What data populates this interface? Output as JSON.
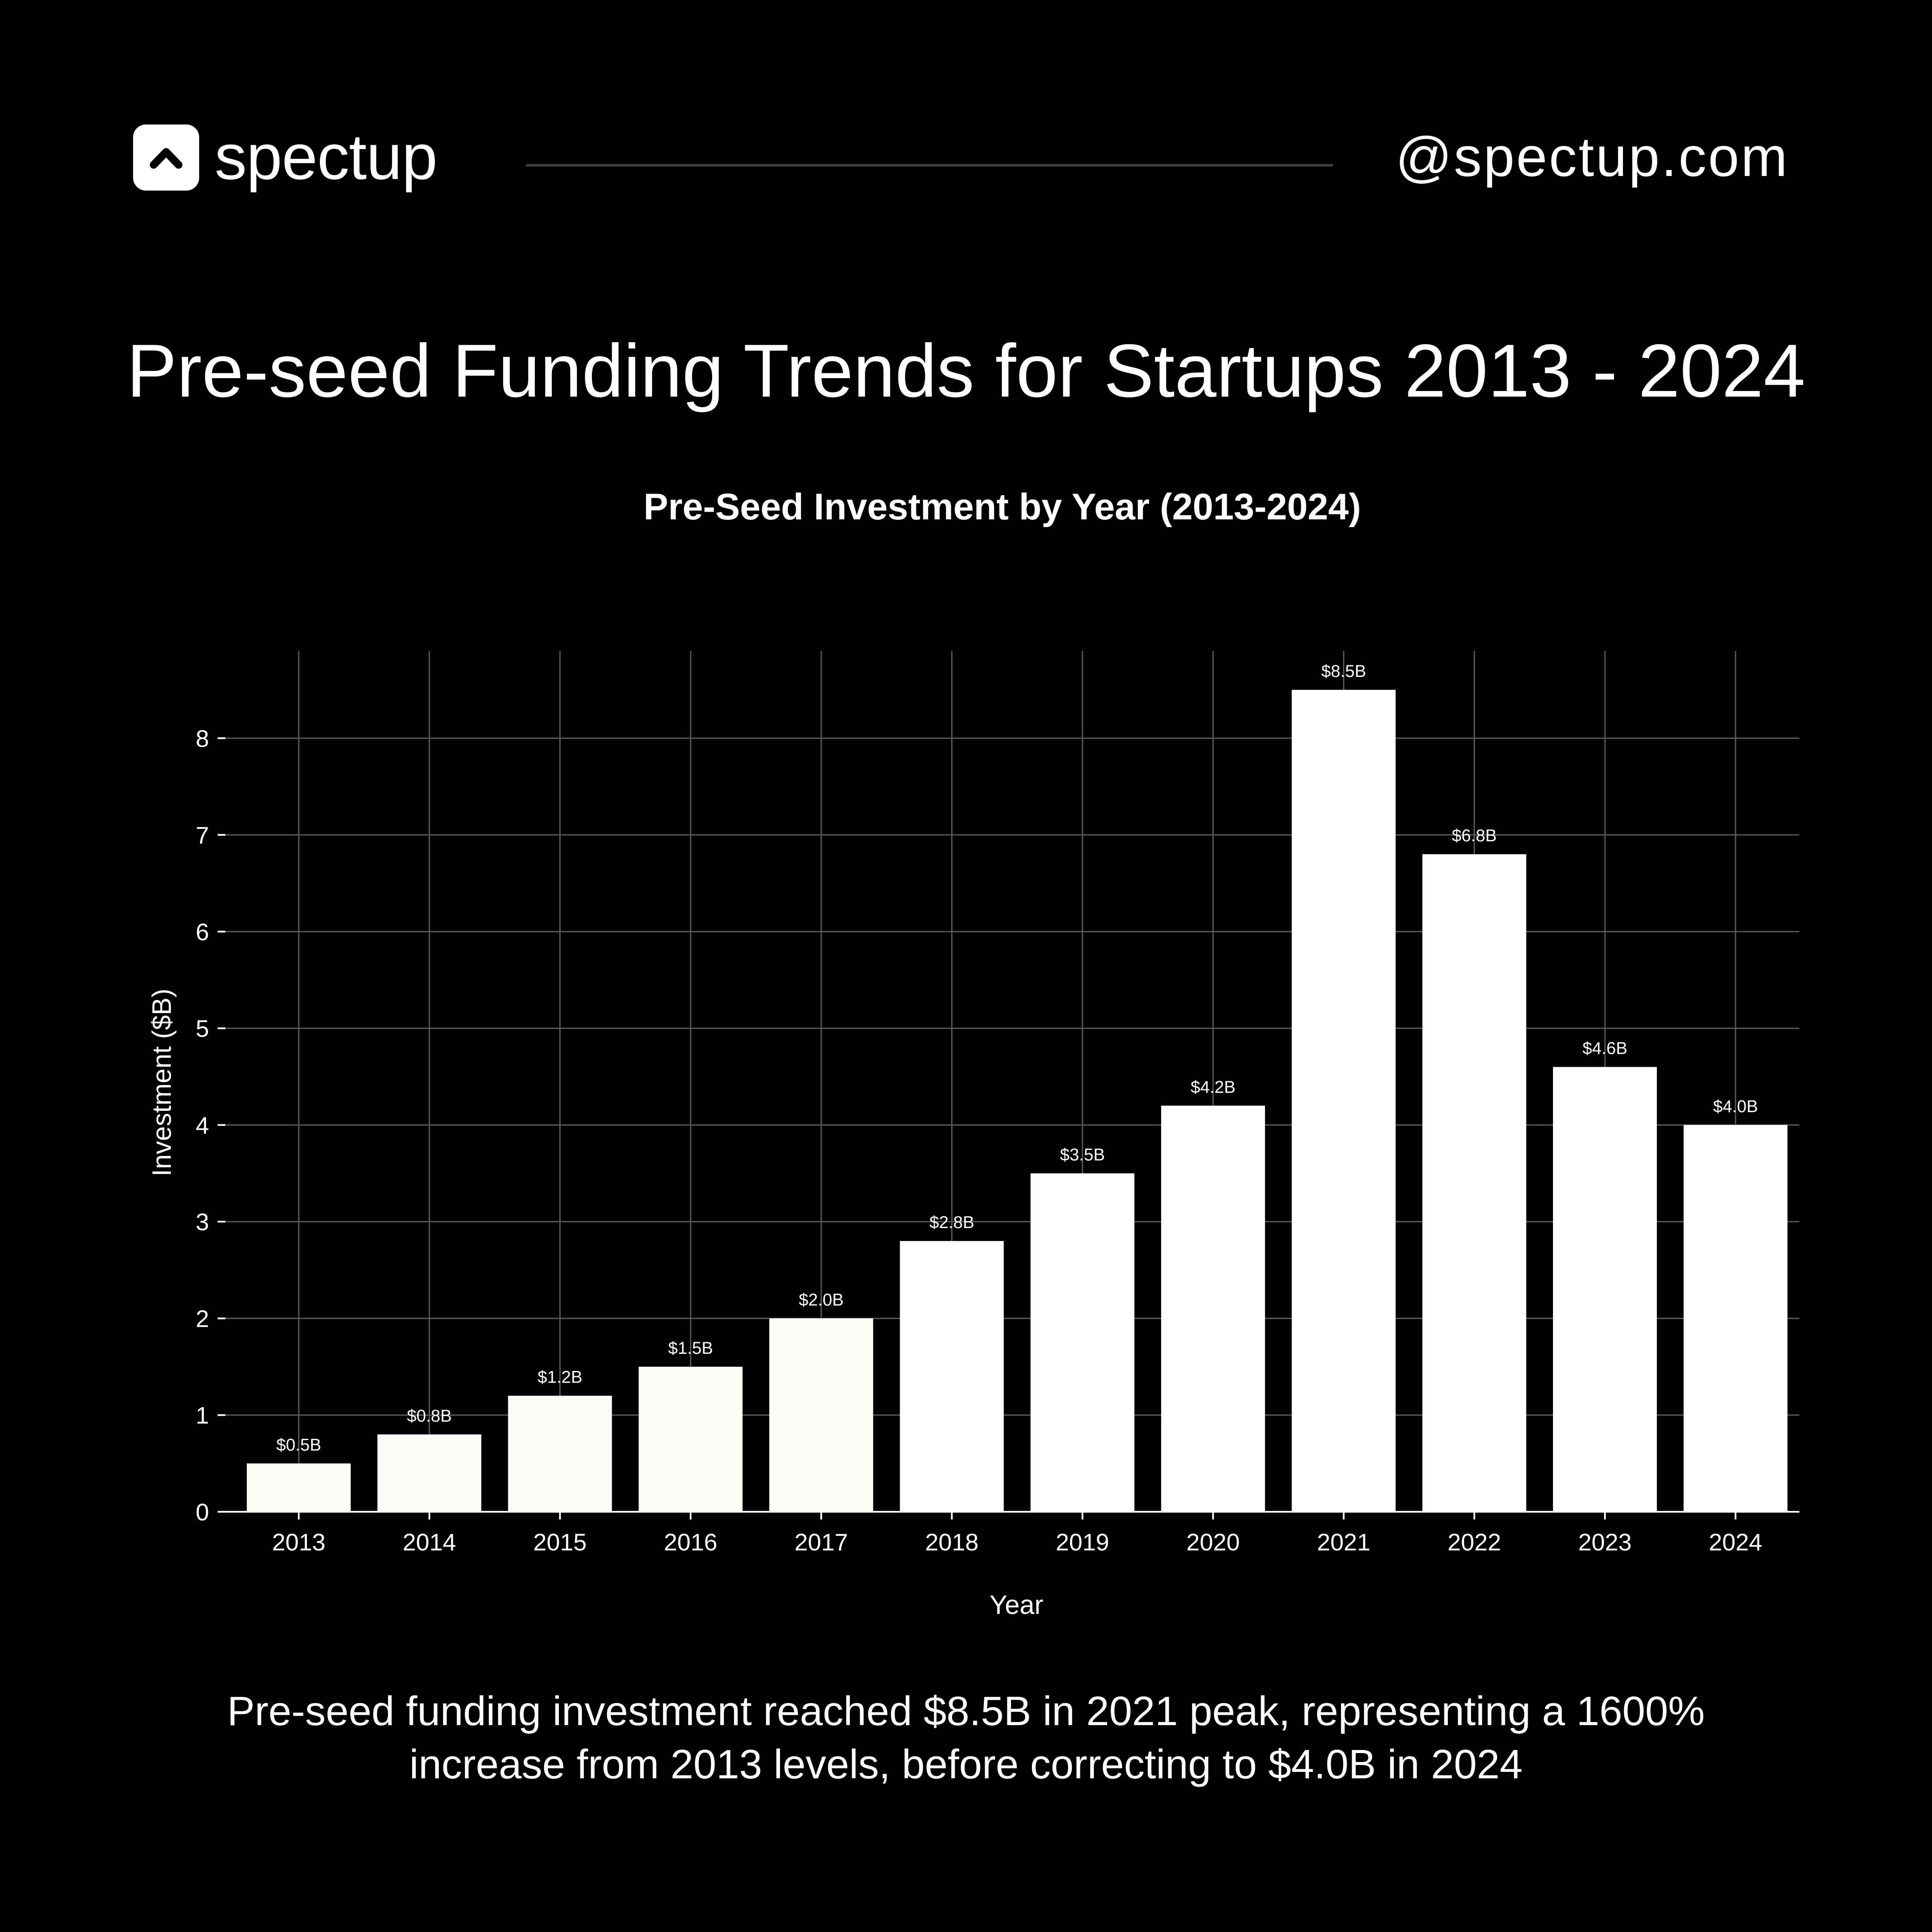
{
  "header": {
    "logo_text": "spectup",
    "handle": "@spectup.com",
    "logo_icon": "chevron-up-icon"
  },
  "page_title": "Pre-seed Funding Trends for Startups 2013 - 2024",
  "caption": {
    "line1": "Pre-seed funding investment reached $8.5B in 2021 peak, representing a 1600%",
    "line2": "increase from 2013 levels, before correcting to $4.0B in 2024"
  },
  "colors": {
    "background": "#000000",
    "bar": "#ffffff",
    "early_bar": "#fcfcf6",
    "text": "#ffffff",
    "grid": "#5a5a5a"
  },
  "chart_data": {
    "type": "bar",
    "title": "Pre-Seed Investment by Year (2013-2024)",
    "xlabel": "Year",
    "ylabel": "Investment ($B)",
    "categories": [
      "2013",
      "2014",
      "2015",
      "2016",
      "2017",
      "2018",
      "2019",
      "2020",
      "2021",
      "2022",
      "2023",
      "2024"
    ],
    "values": [
      0.5,
      0.8,
      1.2,
      1.5,
      2.0,
      2.8,
      3.5,
      4.2,
      8.5,
      6.8,
      4.6,
      4.0
    ],
    "data_labels": [
      "$0.5B",
      "$0.8B",
      "$1.2B",
      "$1.5B",
      "$2.0B",
      "$2.8B",
      "$3.5B",
      "$4.2B",
      "$8.5B",
      "$6.8B",
      "$4.6B",
      "$4.0B"
    ],
    "ylim": [
      0,
      8.9
    ],
    "yticks": [
      0,
      1,
      2,
      3,
      4,
      5,
      6,
      7,
      8
    ],
    "ytick_labels": [
      "0",
      "1",
      "2",
      "3",
      "4",
      "5",
      "6",
      "7",
      "8"
    ],
    "grid": true,
    "legend": "none"
  }
}
